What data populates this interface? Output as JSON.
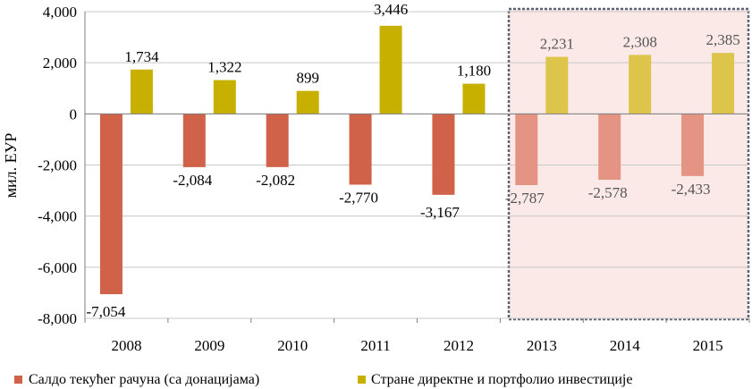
{
  "chart_data": {
    "type": "bar",
    "title": "",
    "xlabel": "",
    "ylabel": "мил. ЕУР",
    "ylim": [
      -8000,
      4000
    ],
    "yticks": [
      4000,
      2000,
      0,
      -2000,
      -4000,
      -6000,
      -8000
    ],
    "ytick_labels": [
      "4,000",
      "2,000",
      "0",
      "-2,000",
      "-4,000",
      "-6,000",
      "-8,000"
    ],
    "grid": "horizontal",
    "legend_position": "bottom",
    "categories": [
      "2008",
      "2009",
      "2010",
      "2011",
      "2012",
      "2013",
      "2014",
      "2015"
    ],
    "projection_start_index": 5,
    "series": [
      {
        "name": "Салдо текућег рачуна (са донацијама)",
        "values": [
          -7054,
          -2084,
          -2082,
          -2770,
          -3167,
          -2787,
          -2578,
          -2433
        ],
        "labels": [
          "-7,054",
          "-2,084",
          "-2,082",
          "-2,770",
          "-3,167",
          "-2,787",
          "-2,578",
          "-2,433"
        ],
        "color": "#d0624a",
        "projection_color": "#e59484"
      },
      {
        "name": "Стране директне и портфолио инвестиције",
        "values": [
          1734,
          1322,
          899,
          3446,
          1180,
          2231,
          2308,
          2385
        ],
        "labels": [
          "1,734",
          "1,322",
          "899",
          "3,446",
          "1,180",
          "2,231",
          "2,308",
          "2,385"
        ],
        "color": "#c8b000",
        "projection_color": "#dcc54a"
      }
    ],
    "projection_box": {
      "fill": "#fbe9e8",
      "border": "#5a6478"
    }
  }
}
